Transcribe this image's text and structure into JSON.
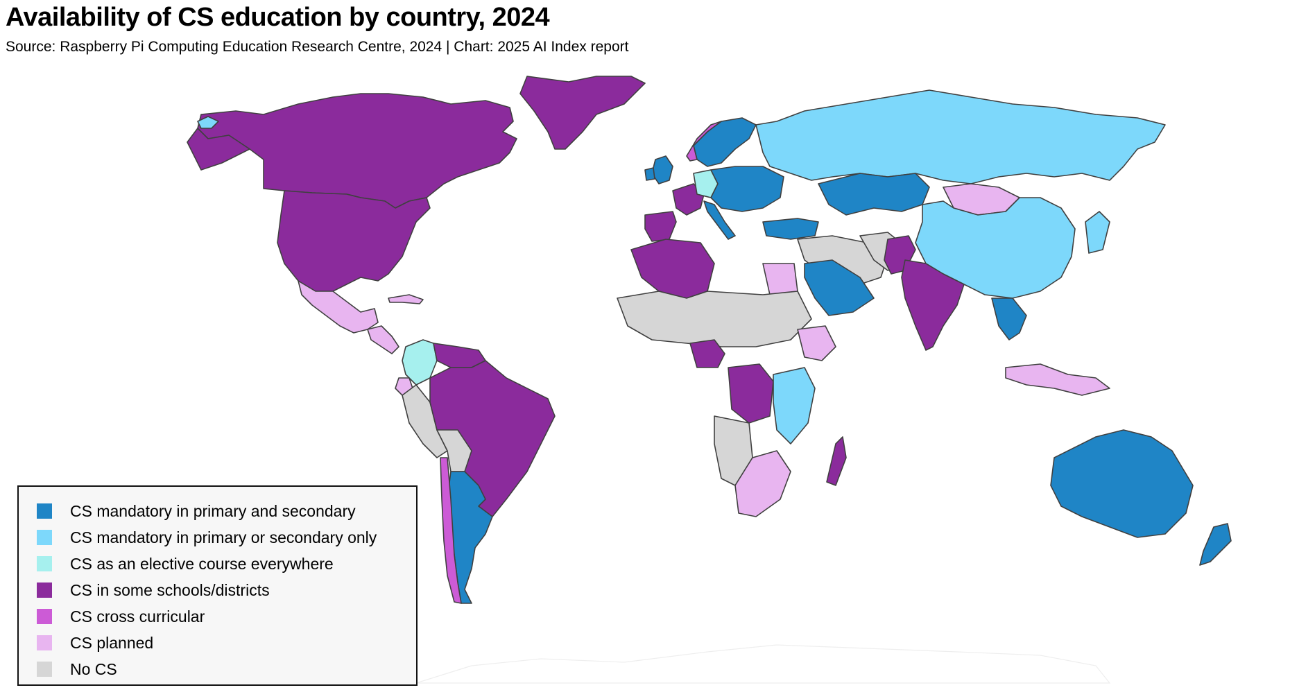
{
  "title": "Availability of CS education by country, 2024",
  "subtitle": "Source: Raspberry Pi Computing Education Research Centre, 2024 | Chart: 2025 AI Index report",
  "colors": {
    "mandatory_both": "#1f85c6",
    "mandatory_one": "#7dd8fb",
    "elective": "#a6f0ee",
    "some_schools": "#8b2b9c",
    "cross_curricular": "#cc5bd6",
    "planned": "#e8b5f0",
    "no_cs": "#d6d6d6",
    "ocean": "#ffffff",
    "border": "#404040"
  },
  "legend": [
    {
      "key": "mandatory_both",
      "label": "CS mandatory in primary and secondary"
    },
    {
      "key": "mandatory_one",
      "label": "CS mandatory in primary or secondary only"
    },
    {
      "key": "elective",
      "label": "CS as an elective course everywhere"
    },
    {
      "key": "some_schools",
      "label": "CS in some schools/districts"
    },
    {
      "key": "cross_curricular",
      "label": "CS cross curricular"
    },
    {
      "key": "planned",
      "label": "CS planned"
    },
    {
      "key": "no_cs",
      "label": "No CS"
    }
  ]
}
